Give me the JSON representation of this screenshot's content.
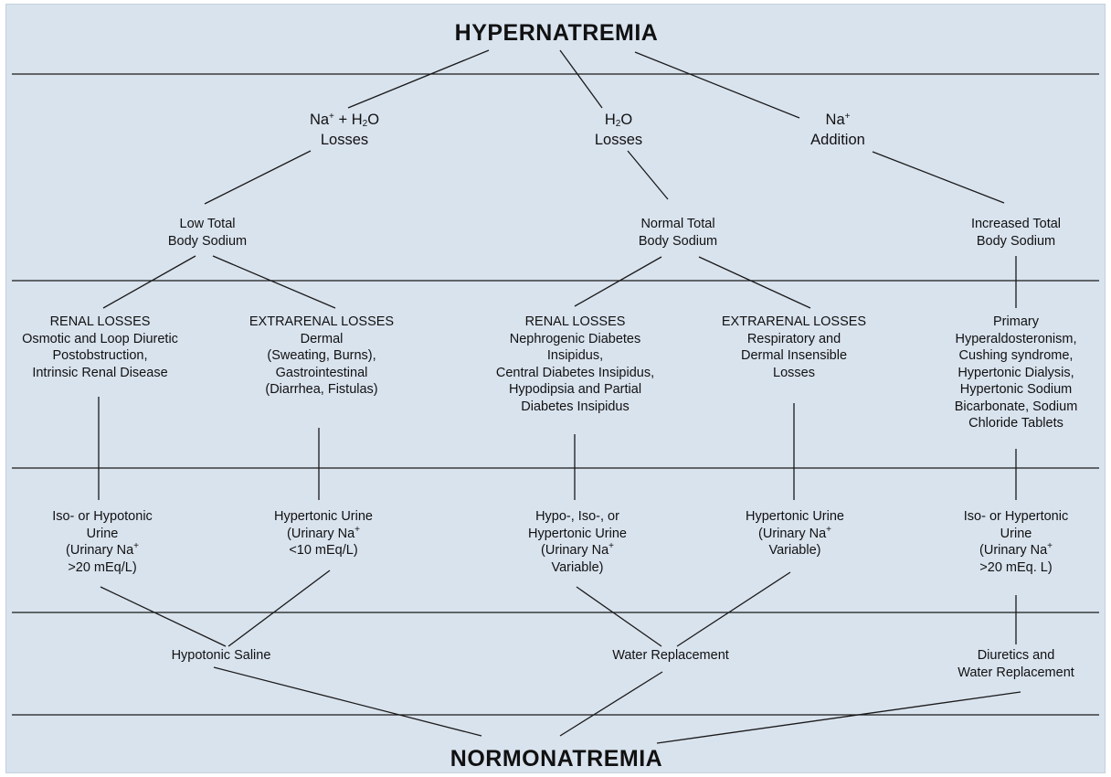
{
  "title_top": "HYPERNATREMIA",
  "title_bottom": "NORMONATREMIA",
  "level1": {
    "na_h2o": {
      "line1": {
        "a": "Na",
        "sup": "+",
        "b": " + H",
        "sub": "2",
        "c": "O"
      },
      "line2": "Losses"
    },
    "h2o": {
      "line1": {
        "a": "H",
        "sub": "2",
        "b": "O"
      },
      "line2": "Losses"
    },
    "na_add": {
      "line1": {
        "a": "Na",
        "sup": "+"
      },
      "line2": "Addition"
    }
  },
  "level2": {
    "low": [
      "Low Total",
      "Body Sodium"
    ],
    "normal": [
      "Normal Total",
      "Body Sodium"
    ],
    "increased": [
      "Increased Total",
      "Body Sodium"
    ]
  },
  "level3": {
    "renal_low": [
      "RENAL LOSSES",
      "Osmotic and Loop Diuretic",
      "Postobstruction,",
      "Intrinsic Renal Disease"
    ],
    "extrarenal_low": [
      "EXTRARENAL LOSSES",
      "Dermal",
      "(Sweating, Burns),",
      "Gastrointestinal",
      "(Diarrhea, Fistulas)"
    ],
    "renal_normal": [
      "RENAL LOSSES",
      "Nephrogenic Diabetes",
      "Insipidus,",
      "Central Diabetes Insipidus,",
      "Hypodipsia and Partial",
      "Diabetes Insipidus"
    ],
    "extrarenal_normal": [
      "EXTRARENAL LOSSES",
      "Respiratory and",
      "Dermal Insensible",
      "Losses"
    ],
    "increased_causes": [
      "Primary",
      "Hyperaldosteronism,",
      "Cushing syndrome,",
      "Hypertonic Dialysis,",
      "Hypertonic Sodium",
      "Bicarbonate, Sodium",
      "Chloride Tablets"
    ]
  },
  "level4": {
    "u1": {
      "lines": [
        "Iso- or Hypotonic",
        "Urine"
      ],
      "na_prefix": "(Urinary Na",
      "na_sup": "+",
      "last": ">20 mEq/L)"
    },
    "u2": {
      "lines": [
        "Hypertonic Urine"
      ],
      "na_prefix": "(Urinary Na",
      "na_sup": "+",
      "last": "<10 mEq/L)"
    },
    "u3": {
      "lines": [
        "Hypo-, Iso-, or",
        "Hypertonic Urine"
      ],
      "na_prefix": "(Urinary Na",
      "na_sup": "+",
      "last": "Variable)"
    },
    "u4": {
      "lines": [
        "Hypertonic Urine"
      ],
      "na_prefix": "(Urinary Na",
      "na_sup": "+",
      "last": "Variable)"
    },
    "u5": {
      "lines": [
        "Iso- or Hypertonic",
        "Urine"
      ],
      "na_prefix": "(Urinary Na",
      "na_sup": "+",
      "last": ">20 mEq. L)"
    }
  },
  "level5": {
    "saline": [
      "Hypotonic Saline"
    ],
    "water": [
      "Water Replacement"
    ],
    "diuretics": [
      "Diuretics and",
      "Water Replacement"
    ]
  },
  "colors": {
    "background": "#d9e3ee",
    "line": "#1a1a1a",
    "text": "#111111"
  }
}
